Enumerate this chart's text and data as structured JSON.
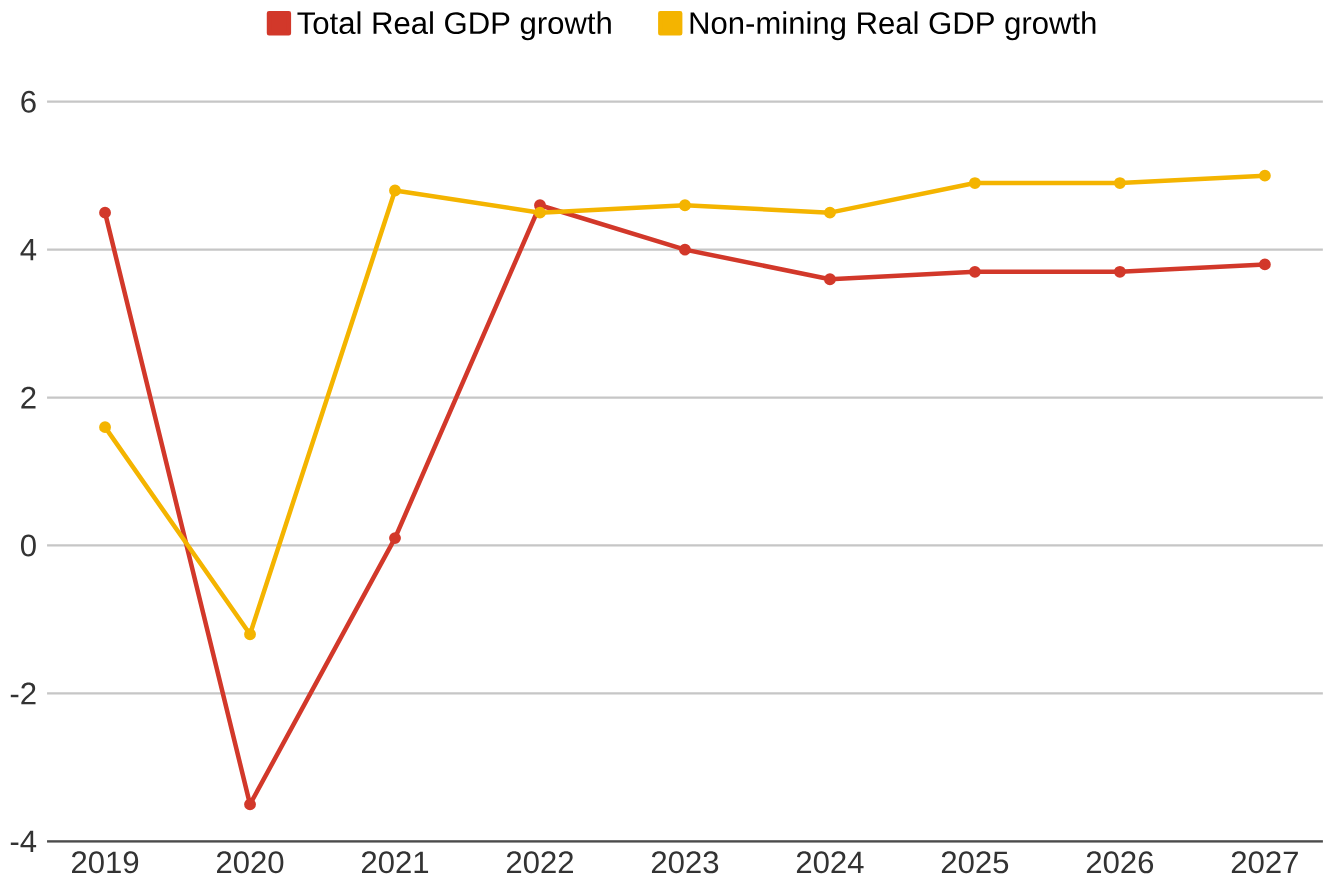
{
  "chart_data": {
    "type": "line",
    "categories": [
      "2019",
      "2020",
      "2021",
      "2022",
      "2023",
      "2024",
      "2025",
      "2026",
      "2027"
    ],
    "series": [
      {
        "name": "Total Real GDP growth",
        "color": "#d2382a",
        "values": [
          4.5,
          -3.5,
          0.1,
          4.6,
          4.0,
          3.6,
          3.7,
          3.7,
          3.8
        ]
      },
      {
        "name": "Non-mining Real GDP growth",
        "color": "#f4b400",
        "values": [
          1.6,
          -1.2,
          4.8,
          4.5,
          4.6,
          4.5,
          4.9,
          4.9,
          5.0
        ]
      }
    ],
    "ylim": [
      -4,
      6
    ],
    "yticks": [
      -4,
      -2,
      0,
      2,
      4,
      6
    ],
    "grid": "y",
    "legend": "top",
    "marker": "circle",
    "line_style": "solid"
  }
}
